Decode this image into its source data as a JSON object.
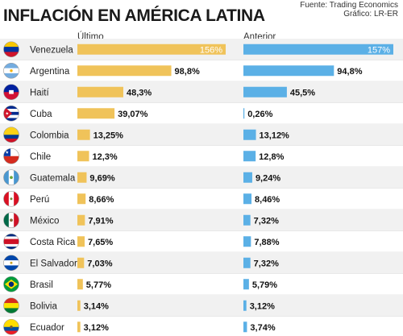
{
  "title": "INFLACIÓN EN AMÉRICA LATINA",
  "source_line1": "Fuente: Trading Economics",
  "source_line2": "Gráfico: LR-ER",
  "colors": {
    "ultimo": "#f0c35a",
    "anterior": "#5bb0e6",
    "stripe": "#f1f1f1"
  },
  "chart_data": {
    "type": "bar",
    "categories": [
      "Venezuela",
      "Argentina",
      "Haití",
      "Cuba",
      "Colombia",
      "Chile",
      "Guatemala",
      "Perú",
      "México",
      "Costa Rica",
      "El Salvador",
      "Brasil",
      "Bolivia",
      "Ecuador"
    ],
    "flag_icons": [
      "flag-venezuela-icon",
      "flag-argentina-icon",
      "flag-haiti-icon",
      "flag-cuba-icon",
      "flag-colombia-icon",
      "flag-chile-icon",
      "flag-guatemala-icon",
      "flag-peru-icon",
      "flag-mexico-icon",
      "flag-costa-rica-icon",
      "flag-el-salvador-icon",
      "flag-brasil-icon",
      "flag-bolivia-icon",
      "flag-ecuador-icon"
    ],
    "series": [
      {
        "name": "Último",
        "values": [
          156,
          98.8,
          48.3,
          39.07,
          13.25,
          12.3,
          9.69,
          8.66,
          7.91,
          7.65,
          7.03,
          5.77,
          3.14,
          3.12
        ],
        "labels": [
          "156%",
          "98,8%",
          "48,3%",
          "39,07%",
          "13,25%",
          "12,3%",
          "9,69%",
          "8,66%",
          "7,91%",
          "7,65%",
          "7,03%",
          "5,77%",
          "3,14%",
          "3,12%"
        ]
      },
      {
        "name": "Anterior",
        "values": [
          157,
          94.8,
          45.5,
          0.26,
          13.12,
          12.8,
          9.24,
          8.46,
          7.32,
          7.88,
          7.32,
          5.79,
          3.12,
          3.74
        ],
        "labels": [
          "157%",
          "94,8%",
          "45,5%",
          "0,26%",
          "13,12%",
          "12,8%",
          "9,24%",
          "8,46%",
          "7,32%",
          "7,88%",
          "7,32%",
          "5,79%",
          "3,12%",
          "3,74%"
        ]
      }
    ]
  }
}
